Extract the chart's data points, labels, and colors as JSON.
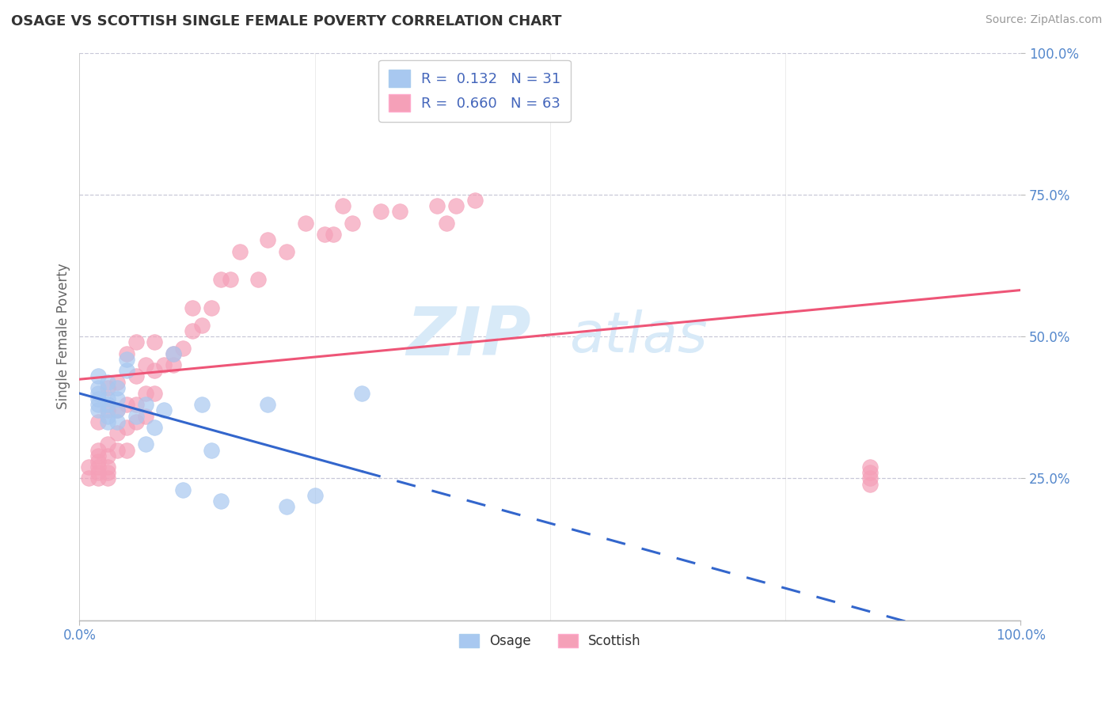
{
  "title": "OSAGE VS SCOTTISH SINGLE FEMALE POVERTY CORRELATION CHART",
  "source": "Source: ZipAtlas.com",
  "ylabel": "Single Female Poverty",
  "xlim": [
    0.0,
    1.0
  ],
  "ylim": [
    0.0,
    1.0
  ],
  "osage_R": 0.132,
  "osage_N": 31,
  "scottish_R": 0.66,
  "scottish_N": 63,
  "osage_color": "#A8C8F0",
  "scottish_color": "#F5A0B8",
  "osage_line_color": "#3366CC",
  "scottish_line_color": "#EE5577",
  "watermark_ZIP": "ZIP",
  "watermark_atlas": "atlas",
  "watermark_color": "#D0E4F7",
  "grid_color": "#C8C8D8",
  "title_color": "#333333",
  "axis_color": "#5588CC",
  "legend_osage_label": "Osage",
  "legend_scottish_label": "Scottish",
  "osage_x": [
    0.02,
    0.02,
    0.02,
    0.02,
    0.02,
    0.02,
    0.03,
    0.03,
    0.03,
    0.03,
    0.03,
    0.04,
    0.04,
    0.04,
    0.04,
    0.05,
    0.05,
    0.06,
    0.07,
    0.07,
    0.08,
    0.09,
    0.1,
    0.11,
    0.13,
    0.14,
    0.15,
    0.2,
    0.22,
    0.25,
    0.3
  ],
  "osage_y": [
    0.37,
    0.38,
    0.39,
    0.4,
    0.41,
    0.43,
    0.35,
    0.36,
    0.38,
    0.39,
    0.42,
    0.35,
    0.37,
    0.39,
    0.41,
    0.44,
    0.46,
    0.36,
    0.38,
    0.31,
    0.34,
    0.37,
    0.47,
    0.23,
    0.38,
    0.3,
    0.21,
    0.38,
    0.2,
    0.22,
    0.4
  ],
  "scottish_x": [
    0.01,
    0.01,
    0.02,
    0.02,
    0.02,
    0.02,
    0.02,
    0.02,
    0.02,
    0.03,
    0.03,
    0.03,
    0.03,
    0.03,
    0.03,
    0.03,
    0.04,
    0.04,
    0.04,
    0.04,
    0.05,
    0.05,
    0.05,
    0.05,
    0.06,
    0.06,
    0.06,
    0.06,
    0.07,
    0.07,
    0.07,
    0.08,
    0.08,
    0.08,
    0.09,
    0.1,
    0.1,
    0.11,
    0.12,
    0.12,
    0.13,
    0.14,
    0.15,
    0.16,
    0.17,
    0.19,
    0.2,
    0.22,
    0.24,
    0.26,
    0.27,
    0.28,
    0.29,
    0.32,
    0.34,
    0.38,
    0.39,
    0.4,
    0.42,
    0.84,
    0.84,
    0.84,
    0.84
  ],
  "scottish_y": [
    0.25,
    0.27,
    0.25,
    0.26,
    0.27,
    0.28,
    0.29,
    0.3,
    0.35,
    0.25,
    0.26,
    0.27,
    0.29,
    0.31,
    0.37,
    0.41,
    0.3,
    0.33,
    0.37,
    0.42,
    0.3,
    0.34,
    0.38,
    0.47,
    0.35,
    0.38,
    0.43,
    0.49,
    0.36,
    0.4,
    0.45,
    0.4,
    0.44,
    0.49,
    0.45,
    0.45,
    0.47,
    0.48,
    0.51,
    0.55,
    0.52,
    0.55,
    0.6,
    0.6,
    0.65,
    0.6,
    0.67,
    0.65,
    0.7,
    0.68,
    0.68,
    0.73,
    0.7,
    0.72,
    0.72,
    0.73,
    0.7,
    0.73,
    0.74,
    0.24,
    0.25,
    0.26,
    0.27
  ],
  "ytick_positions": [
    0.25,
    0.5,
    0.75,
    1.0
  ],
  "ytick_labels": [
    "25.0%",
    "50.0%",
    "75.0%",
    "100.0%"
  ],
  "xtick_positions": [
    0.0,
    1.0
  ],
  "xtick_labels": [
    "0.0%",
    "100.0%"
  ]
}
